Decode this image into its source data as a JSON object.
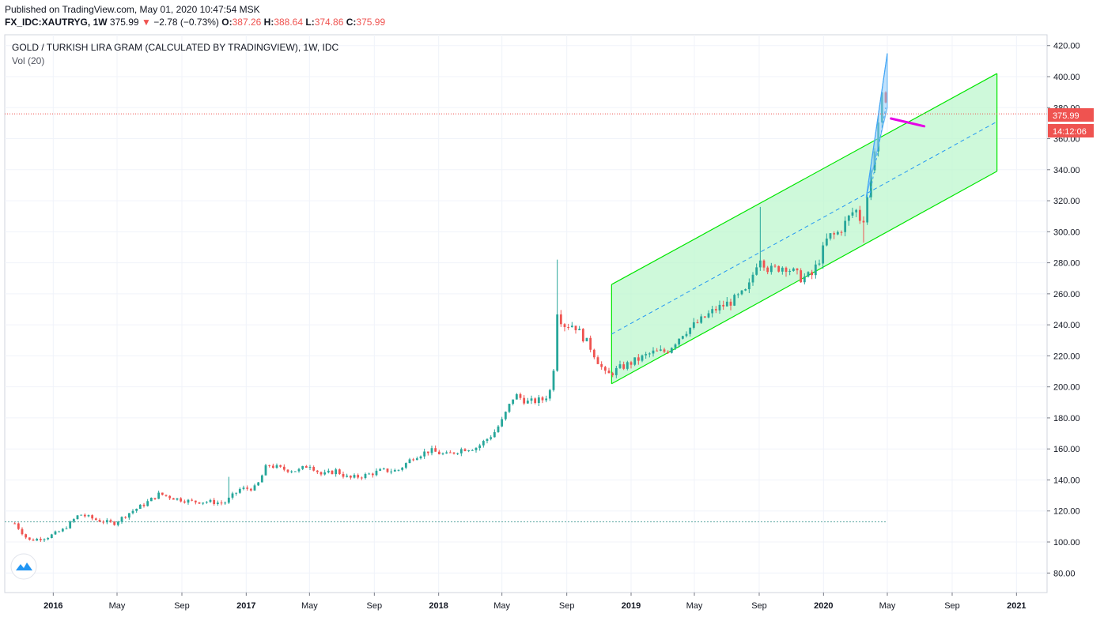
{
  "header": {
    "published": "Published on TradingView.com, May 01, 2020 10:47:54 MSK",
    "symbol": "FX_IDC:XAUTRYG, 1W",
    "last": "375.99",
    "change": "−2.78 (−0.73%)",
    "o_label": "O:",
    "o_value": "387.26",
    "h_label": "H:",
    "h_value": "388.64",
    "l_label": "L:",
    "l_value": "374.86",
    "c_label": "C:",
    "c_value": "375.99"
  },
  "legend": {
    "title": "GOLD / TURKISH LIRA GRAM (CALCULATED BY TRADINGVIEW), 1W, IDC",
    "volume": "Vol (20)"
  },
  "price_tags": {
    "last_price": "375.99",
    "countdown": "14:12:06"
  },
  "colors": {
    "up": "#26a69a",
    "down": "#ef5350",
    "channel_fill": "#b9f6ca",
    "channel_line": "#00e600",
    "midline": "#2196f3",
    "projection": "#e600e6",
    "arrow_fill": "#90caf9",
    "grid": "#f0f3fa"
  },
  "chart_data": {
    "type": "candlestick",
    "title": "GOLD / TURKISH LIRA GRAM (CALCULATED BY TRADINGVIEW), 1W, IDC",
    "interval": "1W",
    "ylim": [
      70,
      425
    ],
    "y_ticks": [
      "80.00",
      "100.00",
      "120.00",
      "140.00",
      "160.00",
      "180.00",
      "200.00",
      "220.00",
      "240.00",
      "260.00",
      "280.00",
      "300.00",
      "320.00",
      "340.00",
      "360.00",
      "380.00",
      "400.00",
      "420.00"
    ],
    "x_ticks": [
      {
        "label": "2016",
        "date": "2016-01-01",
        "bold": true
      },
      {
        "label": "May",
        "date": "2016-05-01",
        "bold": false
      },
      {
        "label": "Sep",
        "date": "2016-09-01",
        "bold": false
      },
      {
        "label": "2017",
        "date": "2017-01-01",
        "bold": true
      },
      {
        "label": "May",
        "date": "2017-05-01",
        "bold": false
      },
      {
        "label": "Sep",
        "date": "2017-09-01",
        "bold": false
      },
      {
        "label": "2018",
        "date": "2018-01-01",
        "bold": true
      },
      {
        "label": "May",
        "date": "2018-05-01",
        "bold": false
      },
      {
        "label": "Sep",
        "date": "2018-09-01",
        "bold": false
      },
      {
        "label": "2019",
        "date": "2019-01-01",
        "bold": true
      },
      {
        "label": "May",
        "date": "2019-05-01",
        "bold": false
      },
      {
        "label": "Sep",
        "date": "2019-09-01",
        "bold": false
      },
      {
        "label": "2020",
        "date": "2020-01-01",
        "bold": true
      },
      {
        "label": "May",
        "date": "2020-05-01",
        "bold": false
      },
      {
        "label": "Sep",
        "date": "2020-09-01",
        "bold": false
      },
      {
        "label": "2021",
        "date": "2021-01-01",
        "bold": true
      }
    ],
    "close_path": [
      [
        "2015-10-20",
        112
      ],
      [
        "2015-11-15",
        101
      ],
      [
        "2015-12-20",
        103
      ],
      [
        "2016-01-20",
        108
      ],
      [
        "2016-02-20",
        118
      ],
      [
        "2016-03-25",
        114
      ],
      [
        "2016-04-25",
        112
      ],
      [
        "2016-05-25",
        119
      ],
      [
        "2016-06-20",
        124
      ],
      [
        "2016-07-20",
        131
      ],
      [
        "2016-08-20",
        128
      ],
      [
        "2016-09-20",
        126
      ],
      [
        "2016-10-20",
        126
      ],
      [
        "2016-11-20",
        125
      ],
      [
        "2016-12-20",
        134
      ],
      [
        "2017-01-20",
        135
      ],
      [
        "2017-02-10",
        150
      ],
      [
        "2017-03-10",
        147
      ],
      [
        "2017-04-10",
        146
      ],
      [
        "2017-05-01",
        150
      ],
      [
        "2017-05-25",
        143
      ],
      [
        "2017-06-20",
        146
      ],
      [
        "2017-07-15",
        141
      ],
      [
        "2017-08-15",
        143
      ],
      [
        "2017-09-15",
        146
      ],
      [
        "2017-10-15",
        146
      ],
      [
        "2017-11-15",
        155
      ],
      [
        "2017-12-15",
        159
      ],
      [
        "2018-01-15",
        156
      ],
      [
        "2018-02-15",
        160
      ],
      [
        "2018-03-15",
        161
      ],
      [
        "2018-04-15",
        170
      ],
      [
        "2018-05-01",
        178
      ],
      [
        "2018-05-25",
        195
      ],
      [
        "2018-06-20",
        190
      ],
      [
        "2018-07-20",
        192
      ],
      [
        "2018-08-05",
        200
      ],
      [
        "2018-08-13",
        250
      ],
      [
        "2018-08-25",
        240
      ],
      [
        "2018-09-15",
        240
      ],
      [
        "2018-10-15",
        226
      ],
      [
        "2018-11-15",
        207
      ],
      [
        "2018-12-10",
        212
      ],
      [
        "2019-01-10",
        217
      ],
      [
        "2019-02-10",
        222
      ],
      [
        "2019-03-10",
        223
      ],
      [
        "2019-04-10",
        235
      ],
      [
        "2019-05-10",
        242
      ],
      [
        "2019-06-10",
        250
      ],
      [
        "2019-07-10",
        255
      ],
      [
        "2019-08-10",
        262
      ],
      [
        "2019-09-01",
        285
      ],
      [
        "2019-09-20",
        275
      ],
      [
        "2019-10-20",
        278
      ],
      [
        "2019-11-20",
        270
      ],
      [
        "2019-12-10",
        272
      ],
      [
        "2019-12-25",
        283
      ],
      [
        "2020-01-10",
        297
      ],
      [
        "2020-01-25",
        298
      ],
      [
        "2020-02-10",
        305
      ],
      [
        "2020-03-01",
        315
      ],
      [
        "2020-03-15",
        305
      ],
      [
        "2020-03-25",
        325
      ],
      [
        "2020-04-05",
        350
      ],
      [
        "2020-04-15",
        373
      ],
      [
        "2020-04-22",
        388
      ],
      [
        "2020-04-30",
        376
      ]
    ],
    "spikes": [
      {
        "date": "2016-12-01",
        "high": 142
      },
      {
        "date": "2018-08-13",
        "high": 282
      },
      {
        "date": "2019-09-01",
        "high": 316
      },
      {
        "date": "2020-03-15",
        "low": 293
      }
    ],
    "dotted_level": 113,
    "regression_channel": {
      "start_date": "2018-11-25",
      "end_date": "2020-11-25",
      "upper": [
        266,
        402
      ],
      "middle": [
        234,
        371
      ],
      "lower": [
        202,
        339
      ]
    },
    "projection_line": {
      "from": [
        "2020-05-08",
        373
      ],
      "to": [
        "2020-07-10",
        368
      ]
    },
    "last_price": 375.99
  }
}
